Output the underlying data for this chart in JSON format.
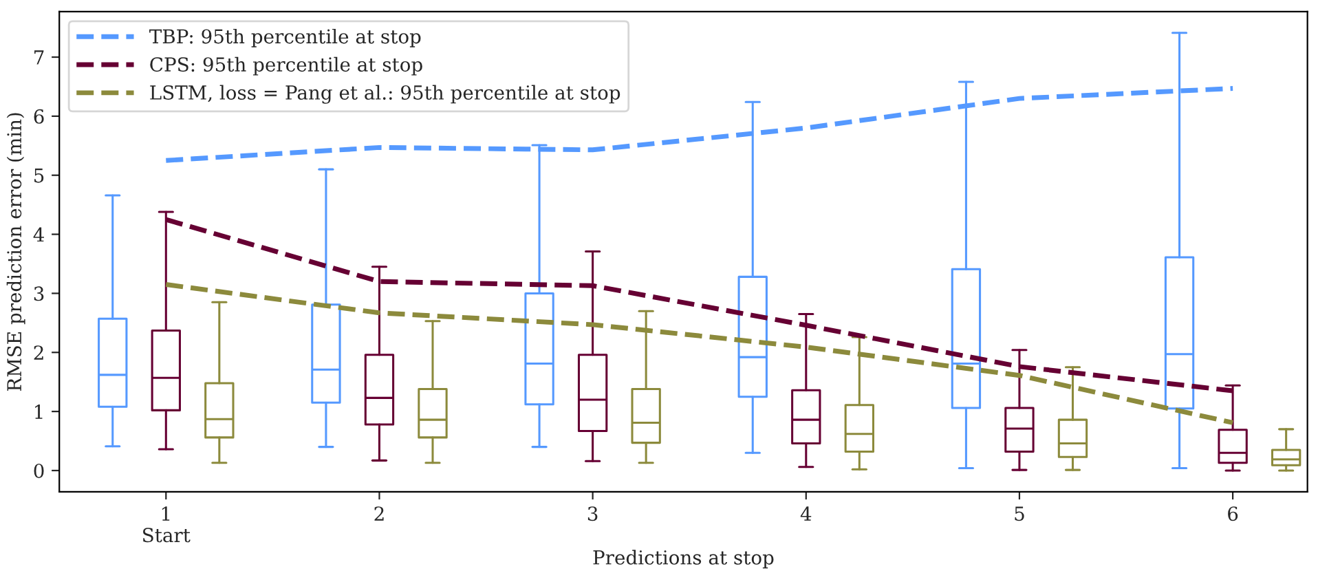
{
  "chart_data": {
    "type": "box",
    "xlabel": "Predictions at stop",
    "ylabel": "RMSE prediction error (min)",
    "categories": [
      "1\nStart",
      "2",
      "3",
      "4",
      "5",
      "6"
    ],
    "ylim": [
      -0.36,
      7.77
    ],
    "yticks": [
      0,
      1,
      2,
      3,
      4,
      5,
      6,
      7
    ],
    "grid": false,
    "legend": "top left",
    "series": [
      {
        "color": "#5599ff",
        "boxes": [
          {
            "low": 0.41,
            "q1": 1.08,
            "median": 1.62,
            "q3": 2.57,
            "high": 4.66
          },
          {
            "low": 0.4,
            "q1": 1.15,
            "median": 1.71,
            "q3": 2.81,
            "high": 5.1
          },
          {
            "low": 0.4,
            "q1": 1.12,
            "median": 1.81,
            "q3": 3.0,
            "high": 5.51
          },
          {
            "low": 0.3,
            "q1": 1.25,
            "median": 1.92,
            "q3": 3.28,
            "high": 6.24
          },
          {
            "low": 0.04,
            "q1": 1.06,
            "median": 1.81,
            "q3": 3.41,
            "high": 6.58
          },
          {
            "low": 0.04,
            "q1": 1.05,
            "median": 1.97,
            "q3": 3.61,
            "high": 7.41
          }
        ]
      },
      {
        "color": "#660033",
        "boxes": [
          {
            "low": 0.36,
            "q1": 1.02,
            "median": 1.57,
            "q3": 2.37,
            "high": 4.38
          },
          {
            "low": 0.17,
            "q1": 0.78,
            "median": 1.23,
            "q3": 1.96,
            "high": 3.45
          },
          {
            "low": 0.16,
            "q1": 0.67,
            "median": 1.2,
            "q3": 1.96,
            "high": 3.71
          },
          {
            "low": 0.06,
            "q1": 0.46,
            "median": 0.86,
            "q3": 1.36,
            "high": 2.65
          },
          {
            "low": 0.01,
            "q1": 0.32,
            "median": 0.71,
            "q3": 1.06,
            "high": 2.04
          },
          {
            "low": 0.0,
            "q1": 0.13,
            "median": 0.3,
            "q3": 0.69,
            "high": 1.44
          }
        ]
      },
      {
        "color": "#8c8a3c",
        "boxes": [
          {
            "low": 0.13,
            "q1": 0.56,
            "median": 0.87,
            "q3": 1.48,
            "high": 2.85
          },
          {
            "low": 0.13,
            "q1": 0.56,
            "median": 0.86,
            "q3": 1.38,
            "high": 2.53
          },
          {
            "low": 0.13,
            "q1": 0.47,
            "median": 0.81,
            "q3": 1.38,
            "high": 2.7
          },
          {
            "low": 0.02,
            "q1": 0.32,
            "median": 0.62,
            "q3": 1.11,
            "high": 2.26
          },
          {
            "low": 0.01,
            "q1": 0.23,
            "median": 0.46,
            "q3": 0.86,
            "high": 1.75
          },
          {
            "low": 0.0,
            "q1": 0.09,
            "median": 0.19,
            "q3": 0.35,
            "high": 0.7
          }
        ]
      },
      {
        "type": "line",
        "line_style": "dashed",
        "name": "TBP: 95th percentile at stop",
        "color": "#5599ff",
        "values": [
          5.25,
          5.47,
          5.43,
          5.8,
          6.3,
          6.47
        ]
      },
      {
        "type": "line",
        "line_style": "dashed",
        "name": "CPS: 95th percentile at stop",
        "color": "#660033",
        "values": [
          4.25,
          3.2,
          3.13,
          2.46,
          1.76,
          1.35
        ]
      },
      {
        "type": "line",
        "line_style": "dashed",
        "name": "LSTM, loss = Pang et al.: 95th percentile at stop",
        "color": "#8c8a3c",
        "values": [
          3.15,
          2.67,
          2.47,
          2.09,
          1.61,
          0.81
        ]
      }
    ]
  }
}
